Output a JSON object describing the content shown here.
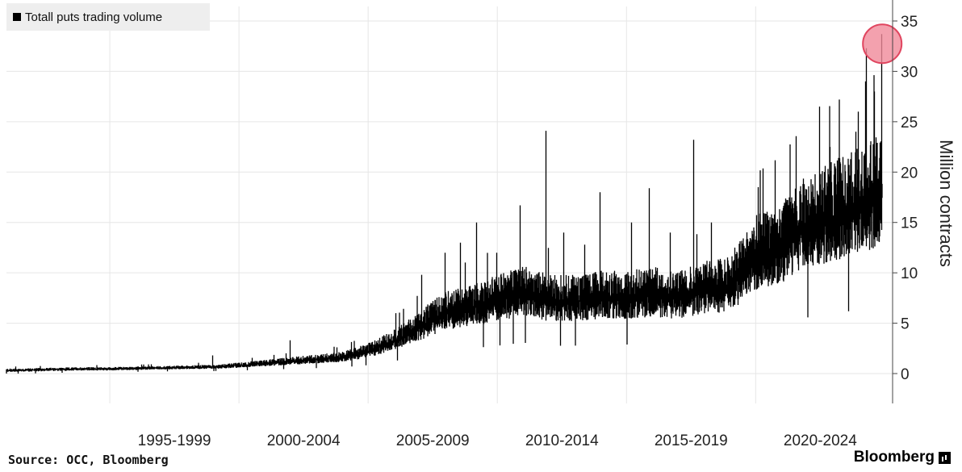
{
  "chart_data": {
    "type": "line",
    "legend": "Totall puts trading volume",
    "legend_position": "top-left",
    "ylabel": "Million contracts",
    "y_ticks": [
      0,
      5,
      10,
      15,
      20,
      25,
      30,
      35
    ],
    "ylim": [
      -3,
      36.5
    ],
    "x_ticks": [
      "1995-1999",
      "2000-2004",
      "2005-2009",
      "2010-2014",
      "2015-2019",
      "2020-2024"
    ],
    "xlim": [
      1991.0,
      2025.3
    ],
    "grid": true,
    "y_axis_side": "right",
    "source": "Source: OCC, Bloomberg",
    "brand": "Bloomberg",
    "highlight": {
      "x": 2024.9,
      "y": 33.7,
      "color": "#f08a9a"
    },
    "series": [
      {
        "color": "#000000",
        "points": [
          [
            1991.0,
            0.3
          ],
          [
            1992.0,
            0.35
          ],
          [
            1993.0,
            0.4
          ],
          [
            1994.0,
            0.45
          ],
          [
            1995.0,
            0.45
          ],
          [
            1996.0,
            0.5
          ],
          [
            1997.0,
            0.55
          ],
          [
            1998.0,
            0.6
          ],
          [
            1999.0,
            0.65
          ],
          [
            2000.0,
            0.8
          ],
          [
            2001.0,
            1.0
          ],
          [
            2002.0,
            1.2
          ],
          [
            2003.0,
            1.4
          ],
          [
            2004.0,
            1.6
          ],
          [
            2005.0,
            2.2
          ],
          [
            2006.0,
            3.2
          ],
          [
            2007.0,
            4.6
          ],
          [
            2008.0,
            6.0
          ],
          [
            2009.0,
            6.5
          ],
          [
            2010.0,
            7.2
          ],
          [
            2011.0,
            8.0
          ],
          [
            2012.0,
            7.2
          ],
          [
            2013.0,
            7.2
          ],
          [
            2014.0,
            7.5
          ],
          [
            2015.0,
            7.5
          ],
          [
            2016.0,
            7.8
          ],
          [
            2017.0,
            7.5
          ],
          [
            2018.0,
            8.2
          ],
          [
            2019.0,
            8.5
          ],
          [
            2020.0,
            11.5
          ],
          [
            2021.0,
            12.5
          ],
          [
            2022.0,
            14.5
          ],
          [
            2023.0,
            15.5
          ],
          [
            2024.0,
            16.5
          ],
          [
            2024.9,
            17.5
          ]
        ],
        "spikes": [
          [
            1999.0,
            1.8
          ],
          [
            2002.0,
            3.3
          ],
          [
            2003.8,
            2.6
          ],
          [
            2006.1,
            6.0
          ],
          [
            2007.1,
            9.8
          ],
          [
            2008.0,
            12.0
          ],
          [
            2008.6,
            13.0
          ],
          [
            2009.2,
            15.0
          ],
          [
            2010.0,
            12.0
          ],
          [
            2010.9,
            16.7
          ],
          [
            2011.9,
            24.1
          ],
          [
            2012.6,
            14.0
          ],
          [
            2013.4,
            12.8
          ],
          [
            2014.0,
            18.0
          ],
          [
            2015.2,
            15.0
          ],
          [
            2015.9,
            18.4
          ],
          [
            2016.7,
            14.0
          ],
          [
            2017.6,
            23.2
          ],
          [
            2018.3,
            15.0
          ],
          [
            2019.2,
            12.5
          ],
          [
            2020.1,
            18.5
          ],
          [
            2020.8,
            15.0
          ],
          [
            2021.2,
            17.0
          ],
          [
            2021.9,
            18.8
          ],
          [
            2022.5,
            26.5
          ],
          [
            2022.9,
            22.5
          ],
          [
            2023.4,
            21.5
          ],
          [
            2023.9,
            24.0
          ],
          [
            2024.0,
            26.0
          ],
          [
            2024.3,
            32.3
          ],
          [
            2024.6,
            28.0
          ],
          [
            2024.9,
            33.7
          ]
        ]
      }
    ]
  }
}
